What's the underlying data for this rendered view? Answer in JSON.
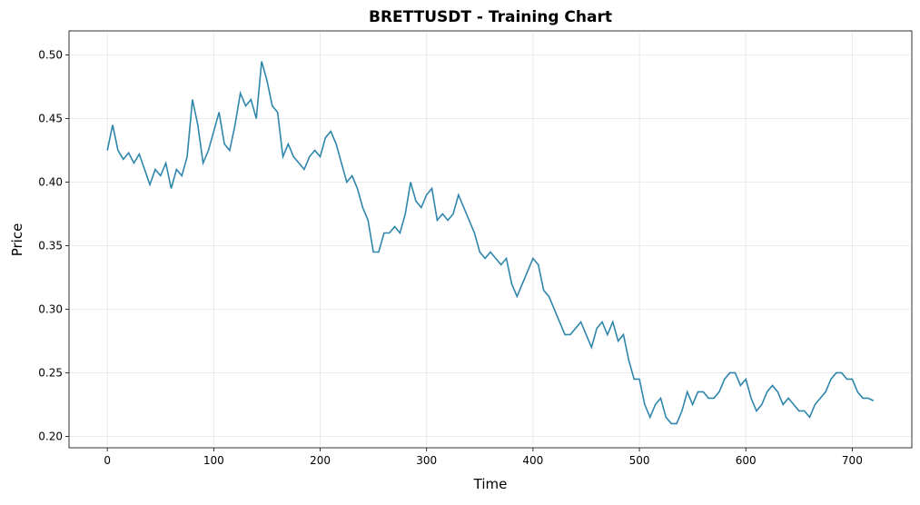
{
  "chart_data": {
    "type": "line",
    "title": "BRETTUSDT - Training Chart",
    "x_label": "Time",
    "y_label": "Price",
    "x": [
      0,
      5,
      10,
      15,
      20,
      25,
      30,
      35,
      40,
      45,
      50,
      55,
      60,
      65,
      70,
      75,
      80,
      85,
      90,
      95,
      100,
      105,
      110,
      115,
      120,
      125,
      130,
      135,
      140,
      145,
      150,
      155,
      160,
      165,
      170,
      175,
      180,
      185,
      190,
      195,
      200,
      205,
      210,
      215,
      220,
      225,
      230,
      235,
      240,
      245,
      250,
      255,
      260,
      265,
      270,
      275,
      280,
      285,
      290,
      295,
      300,
      305,
      310,
      315,
      320,
      325,
      330,
      335,
      340,
      345,
      350,
      355,
      360,
      365,
      370,
      375,
      380,
      385,
      390,
      395,
      400,
      405,
      410,
      415,
      420,
      425,
      430,
      435,
      440,
      445,
      450,
      455,
      460,
      465,
      470,
      475,
      480,
      485,
      490,
      495,
      500,
      505,
      510,
      515,
      520,
      525,
      530,
      535,
      540,
      545,
      550,
      555,
      560,
      565,
      570,
      575,
      580,
      585,
      590,
      595,
      600,
      605,
      610,
      615,
      620,
      625,
      630,
      635,
      640,
      645,
      650,
      655,
      660,
      665,
      670,
      675,
      680,
      685,
      690,
      695,
      700,
      705,
      710,
      715,
      720
    ],
    "series": [
      {
        "name": "BRETTUSDT",
        "color": "#2e86ab",
        "values": [
          0.425,
          0.445,
          0.425,
          0.418,
          0.423,
          0.415,
          0.422,
          0.41,
          0.398,
          0.41,
          0.405,
          0.415,
          0.395,
          0.41,
          0.405,
          0.42,
          0.465,
          0.445,
          0.415,
          0.425,
          0.44,
          0.455,
          0.43,
          0.425,
          0.445,
          0.47,
          0.46,
          0.465,
          0.45,
          0.495,
          0.48,
          0.46,
          0.455,
          0.42,
          0.43,
          0.42,
          0.415,
          0.41,
          0.42,
          0.425,
          0.42,
          0.435,
          0.44,
          0.43,
          0.415,
          0.4,
          0.405,
          0.395,
          0.38,
          0.37,
          0.345,
          0.345,
          0.36,
          0.36,
          0.365,
          0.36,
          0.375,
          0.4,
          0.385,
          0.38,
          0.39,
          0.395,
          0.37,
          0.375,
          0.37,
          0.375,
          0.39,
          0.38,
          0.37,
          0.36,
          0.345,
          0.34,
          0.345,
          0.34,
          0.335,
          0.34,
          0.32,
          0.31,
          0.32,
          0.33,
          0.34,
          0.335,
          0.315,
          0.31,
          0.3,
          0.29,
          0.28,
          0.28,
          0.285,
          0.29,
          0.28,
          0.27,
          0.285,
          0.29,
          0.28,
          0.29,
          0.275,
          0.28,
          0.26,
          0.245,
          0.245,
          0.225,
          0.215,
          0.225,
          0.23,
          0.215,
          0.21,
          0.21,
          0.22,
          0.235,
          0.225,
          0.235,
          0.235,
          0.23,
          0.23,
          0.235,
          0.245,
          0.25,
          0.25,
          0.24,
          0.245,
          0.23,
          0.22,
          0.225,
          0.235,
          0.24,
          0.235,
          0.225,
          0.23,
          0.225,
          0.22,
          0.22,
          0.215,
          0.225,
          0.23,
          0.235,
          0.245,
          0.25,
          0.25,
          0.245,
          0.245,
          0.235,
          0.23,
          0.23,
          0.228
        ]
      }
    ],
    "xlim": [
      -36,
      756
    ],
    "xticks": [
      0,
      100,
      200,
      300,
      400,
      500,
      600,
      700
    ],
    "ylim": [
      0.191,
      0.519
    ],
    "yticks": [
      {
        "value": 0.2,
        "label": "0.20"
      },
      0.25,
      {
        "value": 0.3,
        "label": "0.30"
      },
      0.35,
      {
        "value": 0.4,
        "label": "0.40"
      },
      0.45,
      {
        "value": 0.5,
        "label": "0.50"
      }
    ],
    "grid": true
  }
}
